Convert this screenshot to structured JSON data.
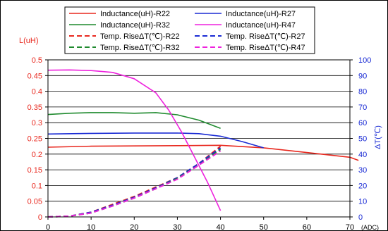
{
  "chart_data": {
    "type": "line",
    "y_left_label": "L(uH)",
    "y_right_label": "ΔT(℃)",
    "x_unit_label": "(ADC)",
    "x_range": [
      0,
      70
    ],
    "x_ticks": [
      0,
      10,
      20,
      30,
      40,
      50,
      60,
      70
    ],
    "y_left_range": [
      0,
      0.5
    ],
    "y_left_ticks": [
      "0",
      "0.05",
      "0.1",
      "0.15",
      "0.2",
      "0.25",
      "0.3",
      "0.35",
      "0.4",
      "0.45",
      "0.5"
    ],
    "y_right_range": [
      0,
      100
    ],
    "y_right_ticks": [
      "0",
      "10",
      "20",
      "30",
      "40",
      "50",
      "60",
      "70",
      "80",
      "90",
      "100"
    ],
    "grid": "horizontal",
    "legend_position": "top",
    "series": [
      {
        "name": "Inductance(uH)-R22",
        "color": "#e8281e",
        "dash": "solid",
        "axis": "left",
        "x": [
          0,
          10,
          20,
          30,
          40,
          50,
          60,
          70,
          72
        ],
        "y": [
          0.222,
          0.225,
          0.226,
          0.227,
          0.228,
          0.22,
          0.205,
          0.19,
          0.18
        ]
      },
      {
        "name": "Inductance(uH)-R27",
        "color": "#1a2bd4",
        "dash": "solid",
        "axis": "left",
        "x": [
          0,
          10,
          20,
          30,
          35,
          40,
          45,
          50
        ],
        "y": [
          0.264,
          0.266,
          0.267,
          0.267,
          0.265,
          0.257,
          0.24,
          0.22
        ]
      },
      {
        "name": "Inductance(uH)-R32",
        "color": "#1f8a2e",
        "dash": "solid",
        "axis": "left",
        "x": [
          0,
          5,
          10,
          15,
          20,
          25,
          30,
          35,
          40
        ],
        "y": [
          0.326,
          0.33,
          0.332,
          0.332,
          0.33,
          0.332,
          0.325,
          0.308,
          0.282
        ]
      },
      {
        "name": "Inductance(uH)-R47",
        "color": "#ee22dd",
        "dash": "solid",
        "axis": "left",
        "x": [
          0,
          5,
          10,
          15,
          20,
          25,
          28,
          31,
          34,
          37,
          40
        ],
        "y": [
          0.467,
          0.468,
          0.466,
          0.46,
          0.44,
          0.395,
          0.34,
          0.27,
          0.19,
          0.11,
          0.02
        ]
      },
      {
        "name": "Temp. RiseΔT(℃)-R22",
        "color": "#e8281e",
        "dash": "dashed",
        "axis": "right",
        "x": [
          0,
          5,
          10,
          15,
          20,
          25,
          30,
          35,
          40
        ],
        "y": [
          0,
          0.5,
          3,
          8,
          13,
          19,
          25,
          34,
          45
        ]
      },
      {
        "name": "Temp. RiseΔT(℃)-R27",
        "color": "#1a2bd4",
        "dash": "dashed",
        "axis": "right",
        "x": [
          0,
          5,
          10,
          15,
          20,
          25,
          30,
          35,
          40
        ],
        "y": [
          0,
          0.5,
          3,
          7.5,
          12.5,
          18.5,
          25,
          34,
          44
        ]
      },
      {
        "name": "Temp. RiseΔT(℃)-R32",
        "color": "#1f8a2e",
        "dash": "dashed",
        "axis": "right",
        "x": [
          0,
          5,
          10,
          15,
          20,
          25,
          30,
          35,
          40
        ],
        "y": [
          0,
          0.5,
          2.5,
          7,
          12,
          18,
          24.5,
          33,
          43
        ]
      },
      {
        "name": "Temp. RiseΔT(℃)-R47",
        "color": "#ee22dd",
        "dash": "dashed",
        "axis": "right",
        "x": [
          0,
          5,
          10,
          15,
          20,
          25,
          30,
          35,
          40
        ],
        "y": [
          0,
          0.5,
          2.5,
          7,
          12,
          18,
          24,
          33,
          42
        ]
      }
    ]
  }
}
